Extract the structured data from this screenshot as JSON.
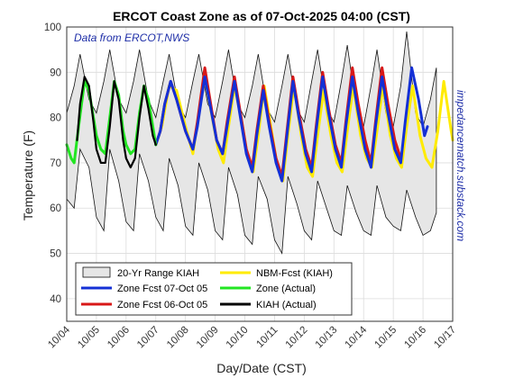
{
  "chart_data": {
    "type": "line",
    "title": "ERCOT Coast Zone as of 07-Oct-2025 04:00 (CST)",
    "xlabel": "Day/Date (CST)",
    "ylabel": "Temperature (F)",
    "ylim": [
      35,
      100
    ],
    "yticks": [
      40,
      50,
      60,
      70,
      80,
      90,
      100
    ],
    "xlim": [
      0,
      13
    ],
    "x_tick_labels": [
      "10/04",
      "10/05",
      "10/06",
      "10/07",
      "10/08",
      "10/09",
      "10/10",
      "10/11",
      "10/12",
      "10/13",
      "10/14",
      "10/15",
      "10/16",
      "10/17"
    ],
    "grid": true,
    "annotation": "Data from ERCOT,NWS",
    "side_text": "impedancematch.substack.com",
    "legend_position": "lower-left",
    "series": [
      {
        "name": "20-Yr Range KIAH",
        "color": "#e6e6e6",
        "upper": [
          [
            0.0,
            81
          ],
          [
            0.25,
            87
          ],
          [
            0.45,
            94
          ],
          [
            0.75,
            84
          ],
          [
            1.0,
            81
          ],
          [
            1.25,
            88
          ],
          [
            1.45,
            95
          ],
          [
            1.75,
            84
          ],
          [
            2.0,
            81
          ],
          [
            2.25,
            88
          ],
          [
            2.45,
            95
          ],
          [
            2.75,
            84
          ],
          [
            3.0,
            80
          ],
          [
            3.25,
            88
          ],
          [
            3.45,
            94
          ],
          [
            3.75,
            83
          ],
          [
            4.0,
            80
          ],
          [
            4.25,
            88
          ],
          [
            4.45,
            94
          ],
          [
            4.75,
            83
          ],
          [
            5.0,
            80
          ],
          [
            5.25,
            88
          ],
          [
            5.45,
            95
          ],
          [
            5.75,
            83
          ],
          [
            6.0,
            80
          ],
          [
            6.25,
            87
          ],
          [
            6.45,
            94
          ],
          [
            6.75,
            82
          ],
          [
            7.0,
            79
          ],
          [
            7.25,
            87
          ],
          [
            7.45,
            94
          ],
          [
            7.75,
            82
          ],
          [
            8.0,
            79
          ],
          [
            8.25,
            88
          ],
          [
            8.45,
            95
          ],
          [
            8.75,
            82
          ],
          [
            9.0,
            79
          ],
          [
            9.25,
            88
          ],
          [
            9.45,
            96
          ],
          [
            9.75,
            82
          ],
          [
            10.0,
            78
          ],
          [
            10.25,
            87
          ],
          [
            10.45,
            95
          ],
          [
            10.75,
            81
          ],
          [
            11.0,
            78
          ],
          [
            11.25,
            87
          ],
          [
            11.45,
            99
          ],
          [
            11.75,
            81
          ],
          [
            12.0,
            78
          ],
          [
            12.25,
            84
          ],
          [
            12.45,
            91
          ]
        ],
        "lower": [
          [
            0.0,
            62
          ],
          [
            0.25,
            60
          ],
          [
            0.45,
            73
          ],
          [
            0.75,
            69
          ],
          [
            1.0,
            58
          ],
          [
            1.25,
            55
          ],
          [
            1.45,
            73
          ],
          [
            1.75,
            66
          ],
          [
            2.0,
            57
          ],
          [
            2.25,
            55
          ],
          [
            2.45,
            72
          ],
          [
            2.75,
            66
          ],
          [
            3.0,
            58
          ],
          [
            3.25,
            55
          ],
          [
            3.45,
            71
          ],
          [
            3.75,
            65
          ],
          [
            4.0,
            56
          ],
          [
            4.25,
            54
          ],
          [
            4.45,
            70
          ],
          [
            4.75,
            64
          ],
          [
            5.0,
            55
          ],
          [
            5.25,
            53
          ],
          [
            5.45,
            69
          ],
          [
            5.75,
            63
          ],
          [
            6.0,
            54
          ],
          [
            6.25,
            52
          ],
          [
            6.45,
            67
          ],
          [
            6.75,
            62
          ],
          [
            7.0,
            53
          ],
          [
            7.25,
            50
          ],
          [
            7.45,
            67
          ],
          [
            7.75,
            61
          ],
          [
            8.0,
            55
          ],
          [
            8.25,
            53
          ],
          [
            8.45,
            66
          ],
          [
            8.75,
            60
          ],
          [
            9.0,
            55
          ],
          [
            9.25,
            54
          ],
          [
            9.45,
            65
          ],
          [
            9.75,
            59
          ],
          [
            10.0,
            55
          ],
          [
            10.25,
            54
          ],
          [
            10.45,
            65
          ],
          [
            10.75,
            58
          ],
          [
            11.0,
            56
          ],
          [
            11.25,
            55
          ],
          [
            11.45,
            64
          ],
          [
            11.75,
            58
          ],
          [
            12.0,
            54
          ],
          [
            12.25,
            55
          ],
          [
            12.45,
            59
          ]
        ]
      },
      {
        "name": "Zone Fcst 07-Oct 05",
        "color": "#1430d6",
        "points": [
          [
            3.0,
            74
          ],
          [
            3.15,
            77
          ],
          [
            3.3,
            83
          ],
          [
            3.5,
            88
          ],
          [
            3.7,
            84
          ],
          [
            4.0,
            77
          ],
          [
            4.25,
            73
          ],
          [
            4.4,
            78
          ],
          [
            4.65,
            89
          ],
          [
            4.85,
            82
          ],
          [
            5.05,
            75
          ],
          [
            5.25,
            72
          ],
          [
            5.4,
            78
          ],
          [
            5.65,
            88
          ],
          [
            5.85,
            80
          ],
          [
            6.05,
            72
          ],
          [
            6.25,
            68
          ],
          [
            6.4,
            76
          ],
          [
            6.62,
            86
          ],
          [
            6.82,
            78
          ],
          [
            7.05,
            70
          ],
          [
            7.25,
            66
          ],
          [
            7.4,
            75
          ],
          [
            7.62,
            88
          ],
          [
            7.82,
            80
          ],
          [
            8.05,
            72
          ],
          [
            8.25,
            68
          ],
          [
            8.4,
            77
          ],
          [
            8.62,
            89
          ],
          [
            8.82,
            81
          ],
          [
            9.05,
            73
          ],
          [
            9.25,
            69
          ],
          [
            9.4,
            78
          ],
          [
            9.62,
            89
          ],
          [
            9.82,
            81
          ],
          [
            10.05,
            73
          ],
          [
            10.25,
            69
          ],
          [
            10.4,
            78
          ],
          [
            10.62,
            89
          ],
          [
            10.82,
            81
          ],
          [
            11.05,
            73
          ],
          [
            11.25,
            70
          ],
          [
            11.4,
            79
          ],
          [
            11.62,
            91
          ],
          [
            11.85,
            84
          ],
          [
            12.05,
            76
          ],
          [
            12.15,
            78
          ]
        ]
      },
      {
        "name": "Zone Fcst 06-Oct 05",
        "color": "#d81818",
        "points": [
          [
            3.0,
            74
          ],
          [
            3.15,
            77
          ],
          [
            3.3,
            83
          ],
          [
            3.5,
            88
          ],
          [
            3.7,
            84
          ],
          [
            4.0,
            77
          ],
          [
            4.25,
            73
          ],
          [
            4.4,
            79
          ],
          [
            4.65,
            91
          ],
          [
            4.85,
            83
          ],
          [
            5.05,
            75
          ],
          [
            5.25,
            72
          ],
          [
            5.4,
            79
          ],
          [
            5.65,
            89
          ],
          [
            5.85,
            81
          ],
          [
            6.05,
            73
          ],
          [
            6.25,
            69
          ],
          [
            6.4,
            77
          ],
          [
            6.62,
            87
          ],
          [
            6.82,
            79
          ],
          [
            7.05,
            71
          ],
          [
            7.25,
            67
          ],
          [
            7.4,
            76
          ],
          [
            7.62,
            89
          ],
          [
            7.82,
            81
          ],
          [
            8.05,
            73
          ],
          [
            8.25,
            69
          ],
          [
            8.4,
            78
          ],
          [
            8.62,
            90
          ],
          [
            8.82,
            82
          ],
          [
            9.05,
            74
          ],
          [
            9.25,
            70
          ],
          [
            9.4,
            79
          ],
          [
            9.62,
            91
          ],
          [
            9.82,
            83
          ],
          [
            10.05,
            75
          ],
          [
            10.25,
            70
          ],
          [
            10.4,
            79
          ],
          [
            10.62,
            91
          ],
          [
            10.82,
            83
          ],
          [
            11.05,
            75
          ],
          [
            11.25,
            71
          ]
        ]
      },
      {
        "name": "NBM-Fcst (KIAH)",
        "color": "#ffeb00",
        "points": [
          [
            3.0,
            74
          ],
          [
            3.2,
            78
          ],
          [
            3.45,
            87
          ],
          [
            3.7,
            86
          ],
          [
            4.0,
            78
          ],
          [
            4.25,
            72
          ],
          [
            4.45,
            81
          ],
          [
            4.65,
            89
          ],
          [
            4.9,
            80
          ],
          [
            5.1,
            73
          ],
          [
            5.28,
            70
          ],
          [
            5.45,
            78
          ],
          [
            5.65,
            87
          ],
          [
            5.9,
            79
          ],
          [
            6.1,
            71
          ],
          [
            6.28,
            68
          ],
          [
            6.45,
            76
          ],
          [
            6.65,
            87
          ],
          [
            6.9,
            77
          ],
          [
            7.1,
            69
          ],
          [
            7.28,
            66
          ],
          [
            7.45,
            76
          ],
          [
            7.65,
            87
          ],
          [
            7.9,
            76
          ],
          [
            8.1,
            69
          ],
          [
            8.28,
            67
          ],
          [
            8.45,
            76
          ],
          [
            8.65,
            86
          ],
          [
            8.9,
            76
          ],
          [
            9.1,
            70
          ],
          [
            9.28,
            68
          ],
          [
            9.45,
            77
          ],
          [
            9.65,
            87
          ],
          [
            9.9,
            76
          ],
          [
            10.1,
            71
          ],
          [
            10.28,
            69
          ],
          [
            10.45,
            77
          ],
          [
            10.65,
            87
          ],
          [
            10.9,
            76
          ],
          [
            11.1,
            71
          ],
          [
            11.28,
            69
          ],
          [
            11.45,
            78
          ],
          [
            11.65,
            87
          ],
          [
            11.9,
            76
          ],
          [
            12.1,
            71
          ],
          [
            12.3,
            69
          ],
          [
            12.5,
            77
          ],
          [
            12.7,
            88
          ],
          [
            12.95,
            77
          ],
          [
            13.0,
            75
          ]
        ]
      },
      {
        "name": "Zone (Actual)",
        "color": "#22e622",
        "points": [
          [
            0.0,
            74
          ],
          [
            0.15,
            71
          ],
          [
            0.25,
            70
          ],
          [
            0.4,
            78
          ],
          [
            0.6,
            88
          ],
          [
            0.75,
            86
          ],
          [
            0.9,
            80
          ],
          [
            1.0,
            76
          ],
          [
            1.15,
            73
          ],
          [
            1.3,
            72
          ],
          [
            1.45,
            80
          ],
          [
            1.6,
            88
          ],
          [
            1.75,
            85
          ],
          [
            1.9,
            77
          ],
          [
            2.0,
            74
          ],
          [
            2.15,
            72
          ],
          [
            2.3,
            73
          ],
          [
            2.45,
            81
          ],
          [
            2.6,
            87
          ],
          [
            2.75,
            84
          ],
          [
            2.9,
            78
          ],
          [
            3.0,
            74
          ]
        ]
      },
      {
        "name": "KIAH (Actual)",
        "color": "#000000",
        "points": [
          [
            0.35,
            75
          ],
          [
            0.45,
            83
          ],
          [
            0.6,
            89
          ],
          [
            0.75,
            87
          ],
          [
            0.9,
            79
          ],
          [
            1.0,
            73
          ],
          [
            1.15,
            70
          ],
          [
            1.3,
            70
          ],
          [
            1.45,
            78
          ],
          [
            1.6,
            88
          ],
          [
            1.75,
            84
          ],
          [
            1.9,
            75
          ],
          [
            2.0,
            71
          ],
          [
            2.15,
            69
          ],
          [
            2.3,
            71
          ],
          [
            2.45,
            80
          ],
          [
            2.6,
            87
          ],
          [
            2.75,
            82
          ],
          [
            2.9,
            76
          ],
          [
            3.0,
            74
          ]
        ]
      }
    ]
  }
}
